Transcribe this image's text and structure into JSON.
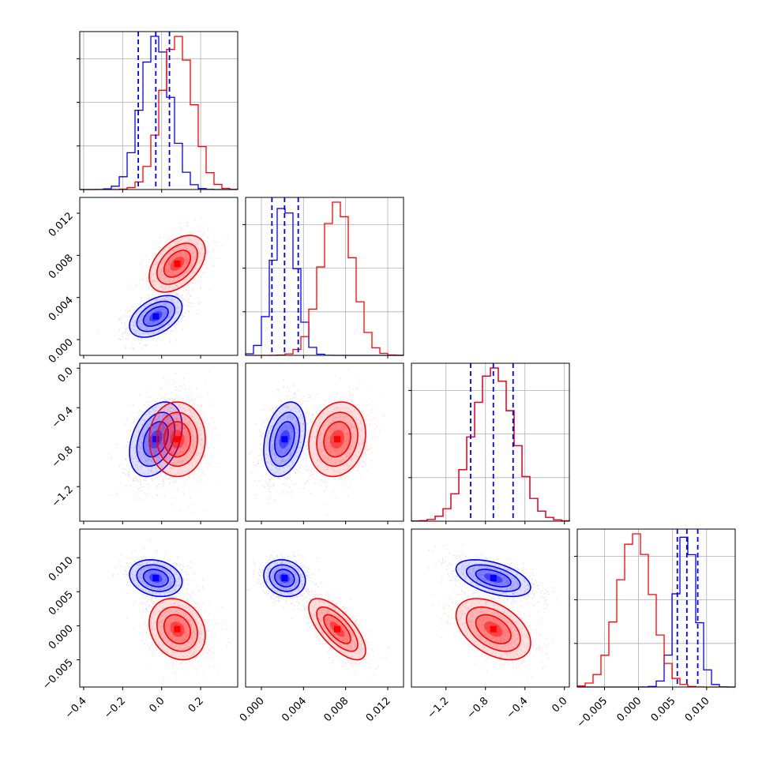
{
  "colors": {
    "series_a": "#0000ff",
    "series_b": "#ff0000",
    "grid": "#b0b0b0"
  },
  "chart_data": {
    "type": "corner",
    "grid": true,
    "legend": "none",
    "parameters": [
      {
        "range": [
          -0.42,
          0.39
        ],
        "ticks": [
          -0.4,
          -0.2,
          0.0,
          0.2
        ],
        "tick_labels": [
          "−0.4",
          "−0.2",
          "0.0",
          "0.2"
        ]
      },
      {
        "range": [
          -0.0015,
          0.0135
        ],
        "ticks": [
          0.0,
          0.004,
          0.008,
          0.012
        ],
        "tick_labels": [
          "0.000",
          "0.004",
          "0.008",
          "0.012"
        ]
      },
      {
        "range": [
          -1.55,
          0.05
        ],
        "ticks": [
          -1.2,
          -0.8,
          -0.4,
          0.0
        ],
        "tick_labels": [
          "−1.2",
          "−0.8",
          "−0.4",
          "0.0"
        ]
      },
      {
        "range": [
          -0.009,
          0.0142
        ],
        "ticks": [
          -0.005,
          0.0,
          0.005,
          0.01
        ],
        "tick_labels": [
          "−0.005",
          "0.000",
          "0.005",
          "0.010"
        ]
      }
    ],
    "series": [
      {
        "color": "#0000ff",
        "means": [
          -0.03,
          0.0022,
          -0.72,
          0.007
        ],
        "sds": [
          0.075,
          0.0011,
          0.21,
          0.0015
        ],
        "quantiles": [
          [
            -0.12,
            -0.03,
            0.04
          ],
          [
            0.001,
            0.0022,
            0.0035
          ],
          [
            -0.95,
            -0.72,
            -0.52
          ],
          [
            0.0057,
            0.0071,
            0.0087
          ]
        ]
      },
      {
        "color": "#ff0000",
        "means": [
          0.08,
          0.0072,
          -0.72,
          -0.0005
        ],
        "sds": [
          0.08,
          0.0015,
          0.21,
          0.0025
        ]
      }
    ],
    "correlations": [
      {
        "pair": [
          0,
          1
        ],
        "values": [
          0.45,
          0.45
        ]
      },
      {
        "pair": [
          0,
          2
        ],
        "values": [
          0.35,
          0.0
        ]
      },
      {
        "pair": [
          1,
          2
        ],
        "values": [
          0.3,
          0.15
        ]
      },
      {
        "pair": [
          0,
          3
        ],
        "values": [
          -0.2,
          -0.2
        ]
      },
      {
        "pair": [
          1,
          3
        ],
        "values": [
          -0.15,
          -0.7
        ]
      },
      {
        "pair": [
          2,
          3
        ],
        "values": [
          -0.5,
          -0.45
        ]
      }
    ]
  }
}
